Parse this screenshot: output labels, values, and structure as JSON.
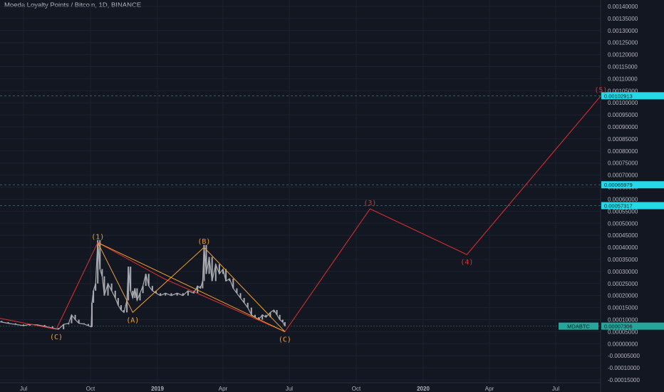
{
  "header": {
    "title": "Moeda Loyalty Points / Bitcoin, 1D, BINANCE"
  },
  "colors": {
    "background": "#131722",
    "grid": "#1e2230",
    "candle": "#a8aab0",
    "wave_red": "#e03030",
    "wave_orange": "#f0a030",
    "cyan_tag": "#26d9e6",
    "teal_tag": "#26a69a"
  },
  "chart_data": {
    "type": "candlestick",
    "title": "Moeda Loyalty Points / Bitcoin, 1D, BINANCE",
    "ylim": [
      -0.00015,
      0.0014
    ],
    "y_ticks": [
      "0.00140000",
      "0.00135000",
      "0.00130000",
      "0.00125000",
      "0.00120000",
      "0.00115000",
      "0.00110000",
      "0.00105000",
      "0.00100000",
      "0.00095000",
      "0.00090000",
      "0.00085000",
      "0.00080000",
      "0.00075000",
      "0.00070000",
      "0.00065000",
      "0.00060000",
      "0.00055000",
      "0.00050000",
      "0.00045000",
      "0.00040000",
      "0.00035000",
      "0.00030000",
      "0.00025000",
      "0.00020000",
      "0.00015000",
      "0.00010000",
      "0.00005000",
      "0.00000000",
      "-0.00005000",
      "-0.00010000",
      "-0.00015000"
    ],
    "y_tick_values": [
      0.0014,
      0.00135,
      0.0013,
      0.00125,
      0.0012,
      0.00115,
      0.0011,
      0.00105,
      0.001,
      0.00095,
      0.0009,
      0.00085,
      0.0008,
      0.00075,
      0.0007,
      0.00065,
      0.0006,
      0.00055,
      0.0005,
      0.00045,
      0.0004,
      0.00035,
      0.0003,
      0.00025,
      0.0002,
      0.00015,
      0.0001,
      5e-05,
      0,
      -5e-05,
      -0.0001,
      -0.00015
    ],
    "x_ticks": [
      "Jul",
      "Oct",
      "2019",
      "Apr",
      "Jul",
      "Oct",
      "2020",
      "Apr",
      "Jul"
    ],
    "x_tick_dates": [
      "2018-07-01",
      "2018-10-01",
      "2019-01-01",
      "2019-04-01",
      "2019-07-01",
      "2019-10-01",
      "2020-01-01",
      "2020-04-01",
      "2020-07-01"
    ],
    "price_tags": [
      {
        "label": "0.00102913",
        "value": 0.00102913,
        "style": "cyan"
      },
      {
        "label": "0.00065979",
        "value": 0.00065979,
        "style": "cyan"
      },
      {
        "label": "0.00057317",
        "value": 0.00057317,
        "style": "cyan"
      },
      {
        "label": "0.00007306",
        "value": 7.306e-05,
        "style": "teal"
      }
    ],
    "symbol_tag": "MDABTC",
    "grid": true,
    "candles_close": [
      [
        "2018-05-01",
        0.00011
      ],
      [
        "2018-05-10",
        0.0001
      ],
      [
        "2018-05-20",
        9.5e-05
      ],
      [
        "2018-06-01",
        9e-05
      ],
      [
        "2018-06-10",
        8.5e-05
      ],
      [
        "2018-06-20",
        8e-05
      ],
      [
        "2018-07-01",
        7.5e-05
      ],
      [
        "2018-07-10",
        8e-05
      ],
      [
        "2018-07-20",
        7.8e-05
      ],
      [
        "2018-07-30",
        7.2e-05
      ],
      [
        "2018-08-10",
        6.5e-05
      ],
      [
        "2018-08-18",
        6e-05
      ],
      [
        "2018-08-25",
        8e-05
      ],
      [
        "2018-09-01",
        8.5e-05
      ],
      [
        "2018-09-05",
        0.00012
      ],
      [
        "2018-09-10",
        0.0001
      ],
      [
        "2018-09-15",
        8.5e-05
      ],
      [
        "2018-09-22",
        8.2e-05
      ],
      [
        "2018-09-28",
        7.5e-05
      ],
      [
        "2018-10-02",
        7e-05
      ],
      [
        "2018-10-03",
        0.00017
      ],
      [
        "2018-10-05",
        0.00022
      ],
      [
        "2018-10-08",
        0.00025
      ],
      [
        "2018-10-11",
        0.00043
      ],
      [
        "2018-10-14",
        0.00031
      ],
      [
        "2018-10-17",
        0.00028
      ],
      [
        "2018-10-20",
        0.0002
      ],
      [
        "2018-10-25",
        0.00025
      ],
      [
        "2018-10-30",
        0.00022
      ],
      [
        "2018-11-04",
        0.00019
      ],
      [
        "2018-11-08",
        0.00016
      ],
      [
        "2018-11-12",
        0.00014
      ],
      [
        "2018-11-16",
        0.00013
      ],
      [
        "2018-11-20",
        0.00018
      ],
      [
        "2018-11-22",
        0.00032
      ],
      [
        "2018-11-25",
        0.00022
      ],
      [
        "2018-11-28",
        0.00019
      ],
      [
        "2018-12-01",
        0.00023
      ],
      [
        "2018-12-04",
        0.00018
      ],
      [
        "2018-12-08",
        0.00021
      ],
      [
        "2018-12-12",
        0.00024
      ],
      [
        "2018-12-16",
        0.00029
      ],
      [
        "2018-12-20",
        0.00024
      ],
      [
        "2018-12-25",
        0.00022
      ],
      [
        "2018-12-30",
        0.00021
      ],
      [
        "2019-01-05",
        0.0002
      ],
      [
        "2019-01-12",
        0.00021
      ],
      [
        "2019-01-20",
        0.0002
      ],
      [
        "2019-01-28",
        0.00021
      ],
      [
        "2019-02-05",
        0.0002
      ],
      [
        "2019-02-12",
        0.00022
      ],
      [
        "2019-02-20",
        0.00021
      ],
      [
        "2019-02-25",
        0.00024
      ],
      [
        "2019-03-01",
        0.00023
      ],
      [
        "2019-03-04",
        0.00026
      ],
      [
        "2019-03-06",
        0.00041
      ],
      [
        "2019-03-09",
        0.00029
      ],
      [
        "2019-03-13",
        0.00036
      ],
      [
        "2019-03-17",
        0.00026
      ],
      [
        "2019-03-22",
        0.00033
      ],
      [
        "2019-03-27",
        0.00029
      ],
      [
        "2019-04-01",
        0.00031
      ],
      [
        "2019-04-05",
        0.00026
      ],
      [
        "2019-04-10",
        0.00027
      ],
      [
        "2019-04-15",
        0.00023
      ],
      [
        "2019-04-20",
        0.00021
      ],
      [
        "2019-04-25",
        0.00019
      ],
      [
        "2019-04-30",
        0.00017
      ],
      [
        "2019-05-05",
        0.00015
      ],
      [
        "2019-05-10",
        0.00012
      ],
      [
        "2019-05-15",
        0.00011
      ],
      [
        "2019-05-20",
        0.0001
      ],
      [
        "2019-05-25",
        0.00012
      ],
      [
        "2019-05-30",
        0.00011
      ],
      [
        "2019-06-05",
        0.00013
      ],
      [
        "2019-06-10",
        0.00014
      ],
      [
        "2019-06-14",
        0.00012
      ],
      [
        "2019-06-18",
        0.0001
      ],
      [
        "2019-06-22",
        9e-05
      ],
      [
        "2019-06-25",
        7.306e-05
      ]
    ],
    "waves": [
      {
        "name": "",
        "color": "red",
        "points": [
          [
            "2018-04-01",
            0.00014
          ],
          [
            "2018-08-15",
            6e-05
          ],
          [
            "2018-10-11",
            0.00042
          ],
          [
            "2019-01-10",
            0.00027
          ],
          [
            "2019-06-25",
            5e-05
          ],
          [
            "2019-10-20",
            0.00056
          ],
          [
            "2020-03-01",
            0.00037
          ],
          [
            "2020-09-01",
            0.00102913
          ]
        ]
      },
      {
        "name": "",
        "color": "orange",
        "points": [
          [
            "2018-10-11",
            0.00042
          ],
          [
            "2018-11-28",
            0.00013
          ],
          [
            "2019-03-06",
            0.0004
          ],
          [
            "2019-06-25",
            5e-05
          ]
        ]
      },
      {
        "name": "",
        "color": "orange",
        "points": [
          [
            "2018-10-11",
            0.00042
          ],
          [
            "2019-06-25",
            5e-05
          ]
        ]
      }
    ],
    "wave_labels": [
      {
        "text": "(C)",
        "x": "2018-08-15",
        "y": 6e-05,
        "color": "orange",
        "pos": "below"
      },
      {
        "text": "(1)",
        "x": "2018-10-11",
        "y": 0.00042,
        "color": "orange",
        "pos": "above"
      },
      {
        "text": "(A)",
        "x": "2018-11-28",
        "y": 0.00013,
        "color": "orange",
        "pos": "below"
      },
      {
        "text": "(B)",
        "x": "2019-03-06",
        "y": 0.0004,
        "color": "orange",
        "pos": "above"
      },
      {
        "text": "(C)",
        "x": "2019-06-25",
        "y": 5e-05,
        "color": "orange",
        "pos": "below"
      },
      {
        "text": "(3)",
        "x": "2019-10-20",
        "y": 0.00056,
        "color": "red",
        "pos": "above"
      },
      {
        "text": "(4)",
        "x": "2020-03-01",
        "y": 0.00037,
        "color": "red",
        "pos": "below"
      },
      {
        "text": "(5)",
        "x": "2020-09-01",
        "y": 0.00102913,
        "color": "red",
        "pos": "above"
      }
    ]
  }
}
